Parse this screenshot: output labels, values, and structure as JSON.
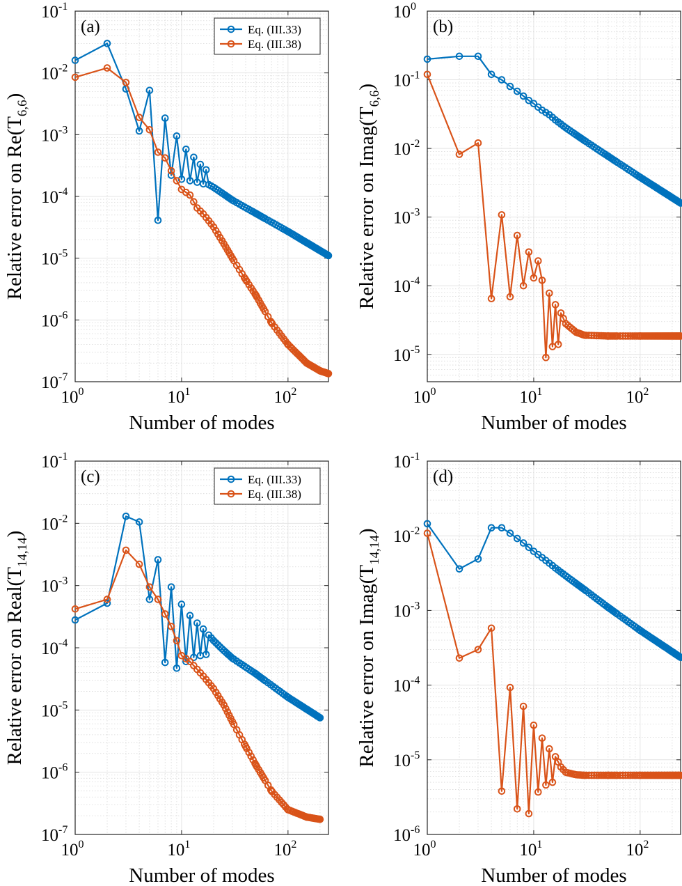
{
  "colors": {
    "series1": "#0072BD",
    "series2": "#D95319",
    "grid": "#e4e4e4",
    "axis": "#262626"
  },
  "chart_data": [
    {
      "type": "line",
      "panel_label": "(a)",
      "xlabel": "Number of modes",
      "ylabel": "Relative error on Re(T",
      "ylabel_sub": "6,6",
      "ylabel_end": ")",
      "xscale": "log",
      "yscale": "log",
      "xlim": [
        1,
        240
      ],
      "ylim": [
        1e-07,
        0.1
      ],
      "x_ticks": [
        {
          "base": "10",
          "exp": "0",
          "v": 1
        },
        {
          "base": "10",
          "exp": "1",
          "v": 10
        },
        {
          "base": "10",
          "exp": "2",
          "v": 100
        }
      ],
      "y_ticks": [
        {
          "base": "10",
          "exp": "-7",
          "v": -7
        },
        {
          "base": "10",
          "exp": "-6",
          "v": -6
        },
        {
          "base": "10",
          "exp": "-5",
          "v": -5
        },
        {
          "base": "10",
          "exp": "-4",
          "v": -4
        },
        {
          "base": "10",
          "exp": "-3",
          "v": -3
        },
        {
          "base": "10",
          "exp": "-2",
          "v": -2
        },
        {
          "base": "10",
          "exp": "-1",
          "v": -1
        }
      ],
      "grid": true,
      "legend": {
        "show": true,
        "position": "top-right",
        "entries": [
          "Eq. (III.33)",
          "Eq. (III.38)"
        ]
      },
      "series": [
        {
          "name": "Eq. (III.33)",
          "x": [
            1,
            2,
            3,
            4,
            5,
            6,
            7,
            8,
            9,
            10,
            11,
            12,
            13,
            14,
            15,
            16,
            17,
            18,
            20,
            25,
            30,
            50,
            100,
            240
          ],
          "y": [
            0.016,
            0.03,
            0.0055,
            0.00115,
            0.0052,
            4.1e-05,
            0.00185,
            0.00022,
            0.00095,
            0.00019,
            0.00058,
            0.00018,
            0.00043,
            0.00017,
            0.00033,
            0.00016,
            0.00027,
            0.000155,
            0.00014,
            0.000108,
            8.7e-05,
            5.3e-05,
            2.7e-05,
            1.1e-05
          ]
        },
        {
          "name": "Eq. (III.38)",
          "x": [
            1,
            2,
            3,
            4,
            5,
            6,
            7,
            8,
            9,
            10,
            12,
            14,
            16,
            20,
            25,
            30,
            40,
            50,
            70,
            100,
            150,
            200,
            240
          ],
          "y": [
            0.0085,
            0.012,
            0.007,
            0.0019,
            0.0012,
            0.00052,
            0.00042,
            0.00026,
            0.00018,
            0.00013,
            0.000105,
            6.5e-05,
            5.2e-05,
            3.2e-05,
            1.7e-05,
            1e-05,
            4.5e-06,
            2.5e-06,
            9e-07,
            4e-07,
            2e-07,
            1.5e-07,
            1.35e-07
          ]
        }
      ]
    },
    {
      "type": "line",
      "panel_label": "(b)",
      "xlabel": "Number of modes",
      "ylabel": "Relative error on Imag(T",
      "ylabel_sub": "6,6",
      "ylabel_end": ")",
      "xscale": "log",
      "yscale": "log",
      "xlim": [
        1,
        240
      ],
      "ylim": [
        4e-06,
        1
      ],
      "x_ticks": [
        {
          "base": "10",
          "exp": "0",
          "v": 1
        },
        {
          "base": "10",
          "exp": "1",
          "v": 10
        },
        {
          "base": "10",
          "exp": "2",
          "v": 100
        }
      ],
      "y_ticks": [
        {
          "base": "10",
          "exp": "-5",
          "v": -5
        },
        {
          "base": "10",
          "exp": "-4",
          "v": -4
        },
        {
          "base": "10",
          "exp": "-3",
          "v": -3
        },
        {
          "base": "10",
          "exp": "-2",
          "v": -2
        },
        {
          "base": "10",
          "exp": "-1",
          "v": -1
        },
        {
          "base": "10",
          "exp": "0",
          "v": 0
        }
      ],
      "grid": true,
      "legend": {
        "show": false
      },
      "series": [
        {
          "name": "",
          "x": [
            1,
            2,
            3,
            4,
            5,
            6,
            7,
            8,
            9,
            10,
            11,
            12,
            14,
            16,
            20,
            30,
            50,
            100,
            240
          ],
          "y": [
            0.2,
            0.22,
            0.22,
            0.12,
            0.1,
            0.08,
            0.068,
            0.058,
            0.05,
            0.045,
            0.04,
            0.036,
            0.031,
            0.026,
            0.02,
            0.013,
            0.0077,
            0.0038,
            0.0016
          ]
        },
        {
          "name": "",
          "x": [
            1,
            2,
            3,
            4,
            5,
            6,
            7,
            8,
            9,
            10,
            11,
            12,
            13,
            14,
            15,
            16,
            17,
            18,
            20,
            25,
            30,
            50,
            100,
            240
          ],
          "y": [
            0.12,
            0.0082,
            0.012,
            6.5e-05,
            0.00108,
            6.9e-05,
            0.00054,
            0.0001,
            0.00031,
            0.00013,
            0.00023,
            0.00012,
            9e-06,
            7.8e-05,
            1.3e-05,
            5.3e-05,
            1.4e-05,
            4e-05,
            2.8e-05,
            2.1e-05,
            1.9e-05,
            1.85e-05,
            1.85e-05,
            1.85e-05
          ]
        }
      ]
    },
    {
      "type": "line",
      "panel_label": "(c)",
      "xlabel": "Number of modes",
      "ylabel": "Relative error on Real(T",
      "ylabel_sub": "14,14",
      "ylabel_end": ")",
      "xscale": "log",
      "yscale": "log",
      "xlim": [
        1,
        240
      ],
      "ylim": [
        1e-07,
        0.1
      ],
      "x_ticks": [
        {
          "base": "10",
          "exp": "0",
          "v": 1
        },
        {
          "base": "10",
          "exp": "1",
          "v": 10
        },
        {
          "base": "10",
          "exp": "2",
          "v": 100
        }
      ],
      "y_ticks": [
        {
          "base": "10",
          "exp": "-7",
          "v": -7
        },
        {
          "base": "10",
          "exp": "-6",
          "v": -6
        },
        {
          "base": "10",
          "exp": "-5",
          "v": -5
        },
        {
          "base": "10",
          "exp": "-4",
          "v": -4
        },
        {
          "base": "10",
          "exp": "-3",
          "v": -3
        },
        {
          "base": "10",
          "exp": "-2",
          "v": -2
        },
        {
          "base": "10",
          "exp": "-1",
          "v": -1
        }
      ],
      "grid": true,
      "legend": {
        "show": true,
        "position": "top-right",
        "entries": [
          "Eq. (III.33)",
          "Eq. (III.38)"
        ]
      },
      "series": [
        {
          "name": "Eq. (III.33)",
          "x": [
            1,
            2,
            3,
            4,
            5,
            6,
            7,
            8,
            9,
            10,
            11,
            12,
            13,
            14,
            15,
            16,
            17,
            18,
            20,
            25,
            30,
            50,
            100,
            200
          ],
          "y": [
            0.00028,
            0.00052,
            0.013,
            0.0105,
            0.0006,
            0.0026,
            5.8e-05,
            0.00095,
            4.7e-05,
            0.0005,
            6e-05,
            0.00033,
            7e-05,
            0.00025,
            7.5e-05,
            0.0002,
            7.8e-05,
            0.00016,
            0.00013,
            9e-05,
            6.8e-05,
            3.8e-05,
            1.6e-05,
            7.5e-06
          ]
        },
        {
          "name": "Eq. (III.38)",
          "x": [
            1,
            2,
            3,
            4,
            5,
            6,
            7,
            8,
            9,
            10,
            12,
            14,
            16,
            20,
            25,
            30,
            40,
            50,
            70,
            100,
            150,
            200
          ],
          "y": [
            0.00042,
            0.0006,
            0.0037,
            0.0022,
            0.00095,
            0.0006,
            0.00035,
            0.00022,
            0.00013,
            7.5e-05,
            6e-05,
            4.5e-05,
            3.5e-05,
            2.2e-05,
            1.2e-05,
            6.5e-06,
            2.6e-06,
            1.3e-06,
            5e-07,
            2.5e-07,
            1.9e-07,
            1.75e-07
          ]
        }
      ]
    },
    {
      "type": "line",
      "panel_label": "(d)",
      "xlabel": "Number of modes",
      "ylabel": "Relative error on Imag(T",
      "ylabel_sub": "14,14",
      "ylabel_end": ")",
      "xscale": "log",
      "yscale": "log",
      "xlim": [
        1,
        240
      ],
      "ylim": [
        1e-06,
        0.1
      ],
      "x_ticks": [
        {
          "base": "10",
          "exp": "0",
          "v": 1
        },
        {
          "base": "10",
          "exp": "1",
          "v": 10
        },
        {
          "base": "10",
          "exp": "2",
          "v": 100
        }
      ],
      "y_ticks": [
        {
          "base": "10",
          "exp": "-6",
          "v": -6
        },
        {
          "base": "10",
          "exp": "-5",
          "v": -5
        },
        {
          "base": "10",
          "exp": "-4",
          "v": -4
        },
        {
          "base": "10",
          "exp": "-3",
          "v": -3
        },
        {
          "base": "10",
          "exp": "-2",
          "v": -2
        },
        {
          "base": "10",
          "exp": "-1",
          "v": -1
        }
      ],
      "grid": true,
      "legend": {
        "show": false
      },
      "series": [
        {
          "name": "",
          "x": [
            1,
            2,
            3,
            4,
            5,
            6,
            7,
            8,
            9,
            10,
            12,
            14,
            16,
            20,
            30,
            50,
            100,
            240
          ],
          "y": [
            0.0145,
            0.0036,
            0.0049,
            0.0128,
            0.0128,
            0.0108,
            0.0092,
            0.008,
            0.007,
            0.0062,
            0.0051,
            0.0043,
            0.0037,
            0.0029,
            0.0019,
            0.0011,
            0.00054,
            0.000235
          ]
        },
        {
          "name": "",
          "x": [
            1,
            2,
            3,
            4,
            5,
            6,
            7,
            8,
            9,
            10,
            11,
            12,
            13,
            14,
            15,
            16,
            18,
            20,
            25,
            30,
            50,
            100,
            240
          ],
          "y": [
            0.0108,
            0.00023,
            0.0003,
            0.00058,
            3.8e-06,
            9.3e-05,
            2.2e-06,
            5.2e-05,
            1.9e-06,
            2.9e-05,
            3.7e-06,
            1.95e-05,
            4.6e-06,
            1.4e-05,
            5e-06,
            1.1e-05,
            8e-06,
            6.8e-06,
            6.3e-06,
            6.2e-06,
            6.2e-06,
            6.2e-06,
            6.2e-06
          ]
        }
      ]
    }
  ]
}
